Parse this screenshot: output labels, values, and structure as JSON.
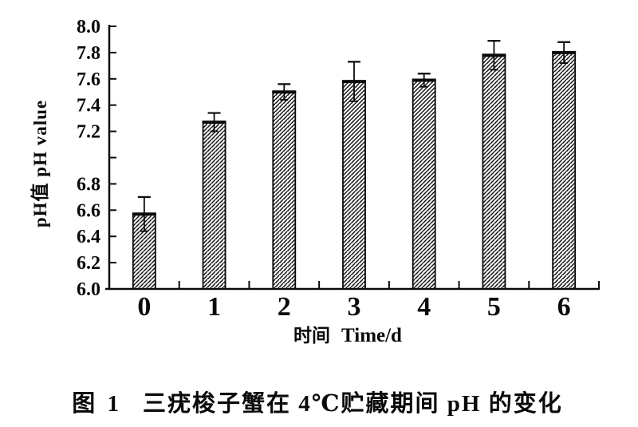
{
  "page": {
    "background": "#ffffff",
    "ink_color": "#0a0a0a"
  },
  "figure": {
    "caption_label": "图 1",
    "caption_text": "三疣梭子蟹在 4℃贮藏期间 pH 的变化"
  },
  "chart_data": {
    "type": "bar",
    "categories": [
      "0",
      "1",
      "2",
      "3",
      "4",
      "5",
      "6"
    ],
    "values": [
      6.57,
      7.27,
      7.5,
      7.58,
      7.59,
      7.78,
      7.8
    ],
    "errors": [
      0.13,
      0.07,
      0.06,
      0.15,
      0.05,
      0.11,
      0.08
    ],
    "error_bars": "symmetric, capped, drawn through bar top",
    "title": "图 1  三疣梭子蟹在 4℃贮藏期间 pH 的变化",
    "xlabel_cjk": "时间",
    "xlabel_latin": "Time/d",
    "ylabel": "pH值 pH value",
    "ylim": [
      6.0,
      8.0
    ],
    "ytick_step": 0.2,
    "ytick_labels_topdown": [
      "8.0",
      "7.8",
      "7.6",
      "7.4",
      "7.2",
      "",
      "6.8",
      "6.6",
      "6.4",
      "6.2",
      "6.0"
    ],
    "note": "7.0 tick present but unlabeled in source scan",
    "grid": false,
    "legend": false,
    "bar_style": "diagonal-hatch black on white",
    "bar_color": "#111111",
    "background": "#ffffff"
  }
}
